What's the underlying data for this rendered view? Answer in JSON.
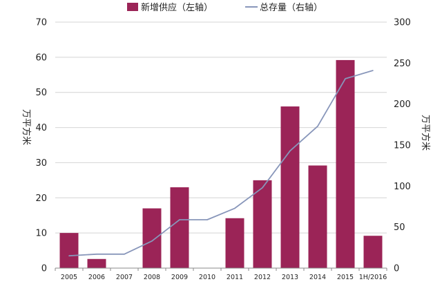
{
  "chart_data": {
    "type": "bar",
    "categories": [
      "2005",
      "2006",
      "2007",
      "2008",
      "2009",
      "2010",
      "2011",
      "2012",
      "2013",
      "2014",
      "2015",
      "1H/2016"
    ],
    "series": [
      {
        "name": "新增供应（左轴）",
        "type": "bar",
        "axis": "left",
        "color": "#9b2457",
        "values": [
          10.0,
          2.6,
          0,
          17.0,
          23.0,
          0,
          14.2,
          25.0,
          46.0,
          29.2,
          59.2,
          9.2
        ]
      },
      {
        "name": "总存量（右轴）",
        "type": "line",
        "axis": "right",
        "color": "#8896ba",
        "values": [
          15,
          17,
          17,
          33,
          59,
          59,
          73,
          98,
          143,
          173,
          231,
          241
        ]
      }
    ],
    "y_left": {
      "label": "万平方米",
      "ylim": [
        0,
        70
      ],
      "ticks": [
        "0",
        "10",
        "20",
        "30",
        "40",
        "50",
        "60",
        "70"
      ]
    },
    "y_right": {
      "label": "万平方米",
      "ylim": [
        0,
        300
      ],
      "ticks": [
        "0",
        "50",
        "100",
        "150",
        "200",
        "250",
        "300"
      ]
    },
    "grid": true,
    "legend_position": "top"
  }
}
